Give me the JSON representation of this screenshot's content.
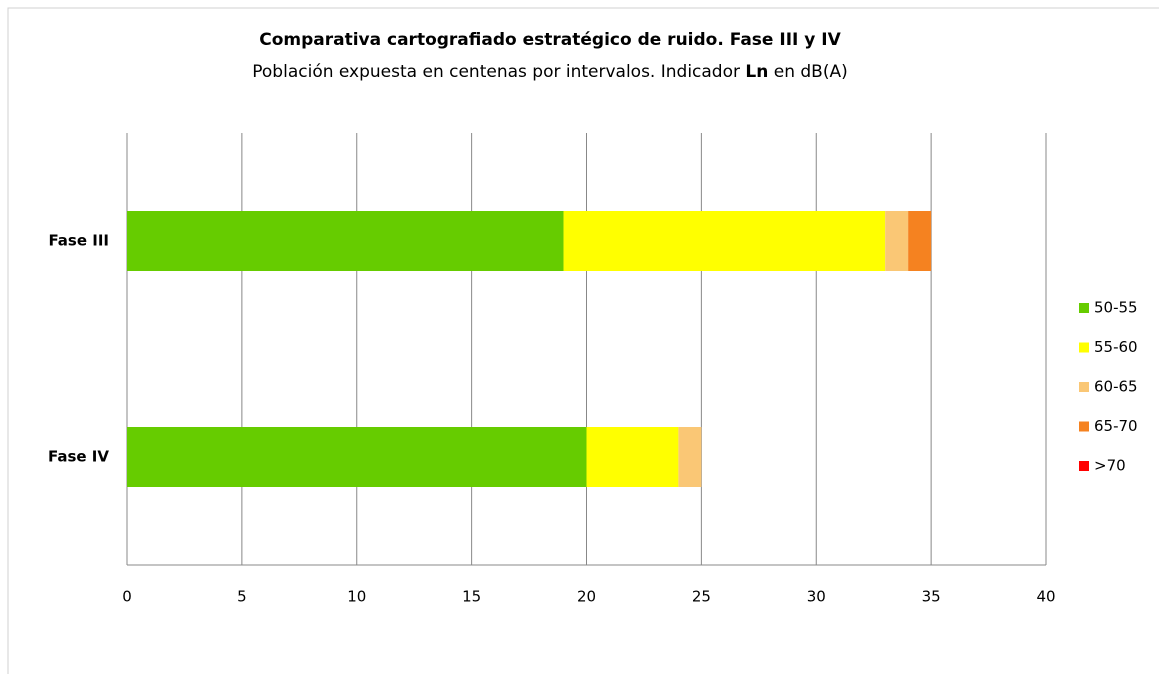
{
  "chart_data": {
    "type": "stacked_barh",
    "title": "Comparativa  cartografiado estratégico de ruido. Fase III y IV",
    "subtitle": [
      "Población expuesta en centenas por intervalos.  Indicador ",
      "Ln",
      " en dB(A)"
    ],
    "categories": [
      "Fase III",
      "Fase IV"
    ],
    "series": [
      {
        "name": "50-55",
        "color": "#66cc00",
        "values": [
          19,
          20
        ]
      },
      {
        "name": "55-60",
        "color": "#ffff00",
        "values": [
          14,
          4
        ]
      },
      {
        "name": "60-65",
        "color": "#fac775",
        "values": [
          1,
          1
        ]
      },
      {
        "name": "65-70",
        "color": "#f58220",
        "values": [
          1,
          0
        ]
      },
      {
        "name": ">70",
        "color": "#ff0000",
        "values": [
          0,
          0
        ]
      }
    ],
    "xlim": [
      0,
      40
    ],
    "xticks": [
      0,
      5,
      10,
      15,
      20,
      25,
      30,
      35,
      40
    ],
    "grid": true,
    "legend": "right"
  }
}
